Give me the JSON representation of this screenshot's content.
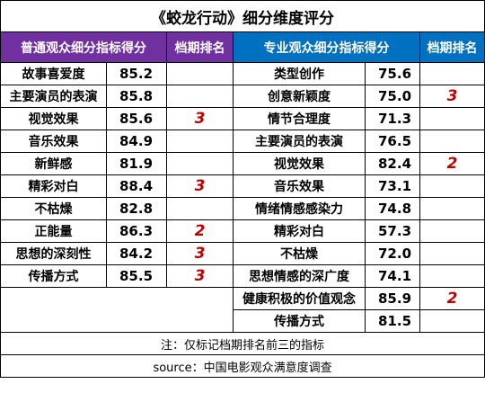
{
  "title": "《蛟龙行动》细分维度评分",
  "headers": {
    "audience_metric": "普通观众细分指标得分",
    "audience_rank": "档期排名",
    "pro_metric": "专业观众细分指标得分",
    "pro_rank": "档期排名"
  },
  "rows": [
    {
      "a_label": "故事喜爱度",
      "a_score": "85.2",
      "a_rank": "",
      "p_label": "类型创作",
      "p_score": "75.6",
      "p_rank": ""
    },
    {
      "a_label": "主要演员的表演",
      "a_score": "85.8",
      "a_rank": "",
      "p_label": "创意新颖度",
      "p_score": "75.0",
      "p_rank": "3"
    },
    {
      "a_label": "视觉效果",
      "a_score": "85.6",
      "a_rank": "3",
      "p_label": "情节合理度",
      "p_score": "71.3",
      "p_rank": ""
    },
    {
      "a_label": "音乐效果",
      "a_score": "84.9",
      "a_rank": "",
      "p_label": "主要演员的表演",
      "p_score": "76.5",
      "p_rank": ""
    },
    {
      "a_label": "新鲜感",
      "a_score": "81.9",
      "a_rank": "",
      "p_label": "视觉效果",
      "p_score": "82.4",
      "p_rank": "2"
    },
    {
      "a_label": "精彩对白",
      "a_score": "88.4",
      "a_rank": "3",
      "p_label": "音乐效果",
      "p_score": "73.1",
      "p_rank": ""
    },
    {
      "a_label": "不枯燥",
      "a_score": "82.8",
      "a_rank": "",
      "p_label": "情绪情感感染力",
      "p_score": "74.8",
      "p_rank": ""
    },
    {
      "a_label": "正能量",
      "a_score": "86.3",
      "a_rank": "2",
      "p_label": "精彩对白",
      "p_score": "57.3",
      "p_rank": ""
    },
    {
      "a_label": "思想的深刻性",
      "a_score": "84.2",
      "a_rank": "3",
      "p_label": "不枯燥",
      "p_score": "72.0",
      "p_rank": ""
    },
    {
      "a_label": "传播方式",
      "a_score": "85.5",
      "a_rank": "3",
      "p_label": "思想情感的深广度",
      "p_score": "74.1",
      "p_rank": ""
    }
  ],
  "extra_rows": [
    {
      "p_label": "健康积极的价值观念",
      "p_score": "85.9",
      "p_rank": "2"
    },
    {
      "p_label": "传播方式",
      "p_score": "81.5",
      "p_rank": ""
    }
  ],
  "notes": {
    "note": "注：仅标记档期排名前三的指标",
    "source": "source：中国电影观众满意度调查"
  },
  "colors": {
    "audience_header_bg": "#7030a0",
    "pro_header_bg": "#0070c0",
    "rank_text": "#c00000"
  }
}
